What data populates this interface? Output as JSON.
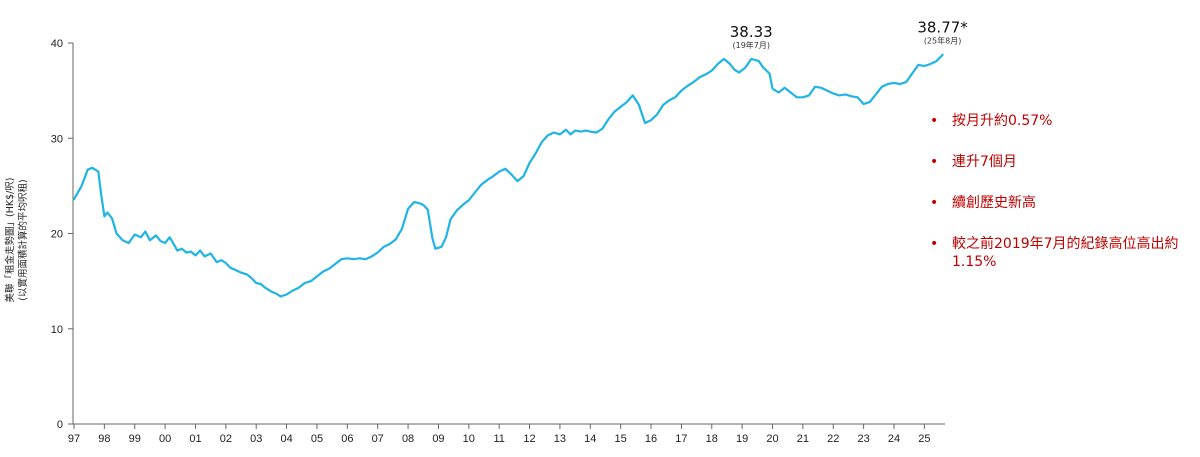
{
  "chart_data": {
    "type": "line",
    "title": "",
    "ylabel_lines": [
      "美聯「租金走勢圖」(HK$/呎)",
      "(以實用面積計算的平均呎租)"
    ],
    "xlabel": "",
    "ylim": [
      0,
      40
    ],
    "yticks": [
      "0",
      "10",
      "20",
      "30",
      "40"
    ],
    "xlim": [
      1997.0,
      2025.7
    ],
    "xticks": [
      "97",
      "98",
      "99",
      "00",
      "01",
      "02",
      "03",
      "04",
      "05",
      "06",
      "07",
      "08",
      "09",
      "10",
      "11",
      "12",
      "13",
      "14",
      "15",
      "16",
      "17",
      "18",
      "19",
      "20",
      "21",
      "22",
      "23",
      "24",
      "25"
    ],
    "grid": false,
    "line_color": "#1fb3e6",
    "series": [
      {
        "x": [
          1997.0,
          1997.25,
          1997.45,
          1997.6,
          1997.8,
          1997.9,
          1998.0,
          1998.1,
          1998.25,
          1998.4,
          1998.6,
          1998.8,
          1999.0,
          1999.2,
          1999.35,
          1999.5,
          1999.7,
          1999.85,
          2000.0,
          2000.15,
          2000.3,
          2000.4,
          2000.55,
          2000.7,
          2000.85,
          2001.0,
          2001.15,
          2001.3,
          2001.5,
          2001.7,
          2001.85,
          2002.0,
          2002.15,
          2002.3,
          2002.5,
          2002.7,
          2002.85,
          2003.0,
          2003.15,
          2003.3,
          2003.5,
          2003.65,
          2003.8,
          2004.0,
          2004.2,
          2004.4,
          2004.6,
          2004.8,
          2005.0,
          2005.2,
          2005.4,
          2005.6,
          2005.8,
          2006.0,
          2006.2,
          2006.4,
          2006.6,
          2006.8,
          2007.0,
          2007.2,
          2007.4,
          2007.6,
          2007.8,
          2008.0,
          2008.2,
          2008.35,
          2008.5,
          2008.65,
          2008.8,
          2008.9,
          2009.0,
          2009.1,
          2009.25,
          2009.4,
          2009.6,
          2009.8,
          2010.0,
          2010.2,
          2010.4,
          2010.6,
          2010.8,
          2011.0,
          2011.2,
          2011.4,
          2011.6,
          2011.8,
          2012.0,
          2012.2,
          2012.4,
          2012.6,
          2012.8,
          2013.0,
          2013.2,
          2013.35,
          2013.5,
          2013.7,
          2013.85,
          2014.0,
          2014.2,
          2014.4,
          2014.6,
          2014.8,
          2015.0,
          2015.2,
          2015.4,
          2015.6,
          2015.8,
          2016.0,
          2016.2,
          2016.4,
          2016.6,
          2016.8,
          2017.0,
          2017.2,
          2017.4,
          2017.6,
          2017.8,
          2018.0,
          2018.2,
          2018.4,
          2018.6,
          2018.75,
          2018.9,
          2019.1,
          2019.3,
          2019.55,
          2019.7,
          2019.9,
          2020.0,
          2020.2,
          2020.4,
          2020.6,
          2020.8,
          2021.0,
          2021.2,
          2021.4,
          2021.6,
          2021.8,
          2022.0,
          2022.2,
          2022.4,
          2022.6,
          2022.8,
          2023.0,
          2023.2,
          2023.4,
          2023.6,
          2023.8,
          2024.0,
          2024.2,
          2024.4,
          2024.6,
          2024.8,
          2025.0,
          2025.2,
          2025.4,
          2025.6
        ],
        "values": [
          23.6,
          25.0,
          26.7,
          26.9,
          26.5,
          24.0,
          21.8,
          22.2,
          21.6,
          20.0,
          19.3,
          19.0,
          19.9,
          19.6,
          20.2,
          19.3,
          19.8,
          19.2,
          19.0,
          19.6,
          18.8,
          18.2,
          18.4,
          18.0,
          18.1,
          17.7,
          18.2,
          17.6,
          17.9,
          17.0,
          17.2,
          16.9,
          16.4,
          16.2,
          15.9,
          15.7,
          15.3,
          14.8,
          14.7,
          14.3,
          13.9,
          13.7,
          13.4,
          13.6,
          14.0,
          14.3,
          14.8,
          15.0,
          15.5,
          16.0,
          16.3,
          16.8,
          17.3,
          17.4,
          17.3,
          17.4,
          17.3,
          17.6,
          18.0,
          18.6,
          18.9,
          19.4,
          20.5,
          22.6,
          23.3,
          23.2,
          23.0,
          22.5,
          19.5,
          18.4,
          18.5,
          18.6,
          19.6,
          21.5,
          22.4,
          23.0,
          23.5,
          24.3,
          25.1,
          25.6,
          26.0,
          26.5,
          26.8,
          26.2,
          25.5,
          26.0,
          27.4,
          28.4,
          29.6,
          30.3,
          30.6,
          30.4,
          30.9,
          30.4,
          30.8,
          30.7,
          30.8,
          30.7,
          30.6,
          31.0,
          32.0,
          32.8,
          33.3,
          33.8,
          34.5,
          33.5,
          31.6,
          31.9,
          32.5,
          33.5,
          34.0,
          34.3,
          35.0,
          35.5,
          35.9,
          36.4,
          36.7,
          37.1,
          37.8,
          38.33,
          37.8,
          37.2,
          36.9,
          37.4,
          38.33,
          38.1,
          37.4,
          36.8,
          35.2,
          34.8,
          35.3,
          34.8,
          34.3,
          34.3,
          34.5,
          35.4,
          35.3,
          35.0,
          34.7,
          34.5,
          34.6,
          34.4,
          34.3,
          33.6,
          33.8,
          34.6,
          35.4,
          35.7,
          35.8,
          35.7,
          35.9,
          36.8,
          37.7,
          37.6,
          37.8,
          38.1,
          38.77
        ]
      }
    ],
    "annotations": [
      {
        "x": 2019.3,
        "y": 38.33,
        "label": "38.33",
        "sublabel": "(19年7月)"
      },
      {
        "x": 2025.6,
        "y": 38.77,
        "label": "38.77*",
        "sublabel": "(25年8月)"
      }
    ]
  },
  "notes": {
    "bullet": "•",
    "items": [
      "按月升約0.57%",
      "連升7個月",
      "續創歷史新高",
      "較之前2019年7月的紀錄高位高出約1.15%"
    ]
  }
}
